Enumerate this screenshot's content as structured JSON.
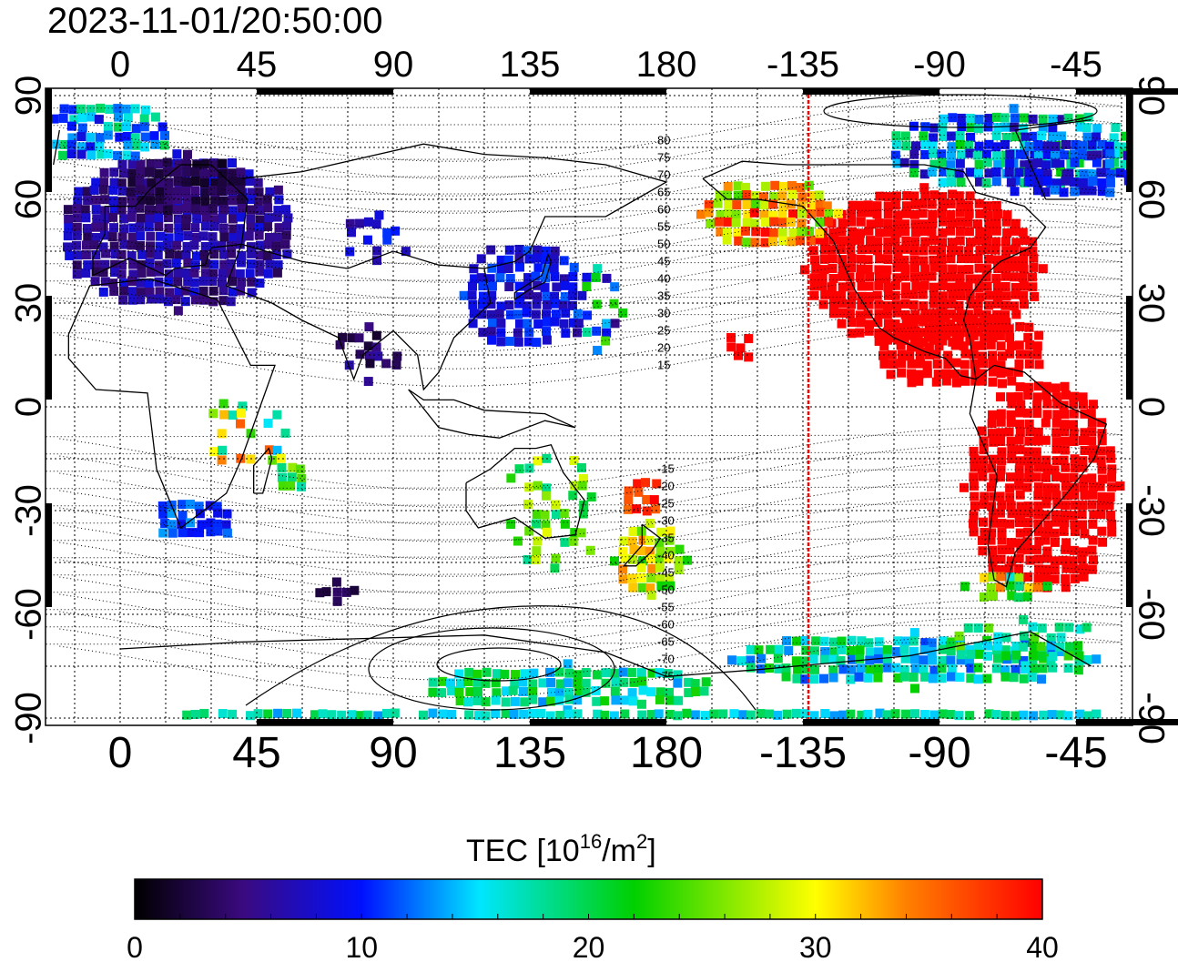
{
  "header": {
    "timestamp": "2023-11-01/20:50:00"
  },
  "map": {
    "x_ticks": [
      "0",
      "45",
      "90",
      "135",
      "180",
      "-135",
      "-90",
      "-45"
    ],
    "y_ticks": [
      "90",
      "60",
      "30",
      "0",
      "-30",
      "-60",
      "-90"
    ],
    "mlat_labels": [
      "80",
      "75",
      "70",
      "65",
      "60",
      "55",
      "50",
      "45",
      "40",
      "35",
      "30",
      "25",
      "20",
      "15",
      "-15",
      "-20",
      "-25",
      "-30",
      "-35",
      "-40",
      "-45",
      "-50",
      "-55",
      "-60",
      "-65",
      "-70",
      "-75"
    ],
    "terminator_longitude": -135,
    "terminator_color": "#ff0000",
    "tec_regions": [
      {
        "name": "europe",
        "value": 6
      },
      {
        "name": "north-america",
        "value": 40
      },
      {
        "name": "south-america",
        "value": 40
      },
      {
        "name": "east-asia",
        "value": 9
      },
      {
        "name": "arctic-canada",
        "value": 14
      },
      {
        "name": "antarctica",
        "value": 18
      },
      {
        "name": "south-africa",
        "value": 11
      },
      {
        "name": "australia",
        "value": 24
      },
      {
        "name": "new-zealand",
        "value": 28
      }
    ]
  },
  "colorbar": {
    "title_prefix": "TEC  [10",
    "title_exp1": "16",
    "title_mid": "/m",
    "title_exp2": "2",
    "title_suffix": "]",
    "ticks": [
      "0",
      "10",
      "20",
      "30",
      "40"
    ],
    "min": 0,
    "max": 40,
    "stops": [
      "#000000",
      "#3a0a80",
      "#0010ff",
      "#00e6ff",
      "#00d000",
      "#ffff00",
      "#ff8000",
      "#ff0000"
    ]
  }
}
